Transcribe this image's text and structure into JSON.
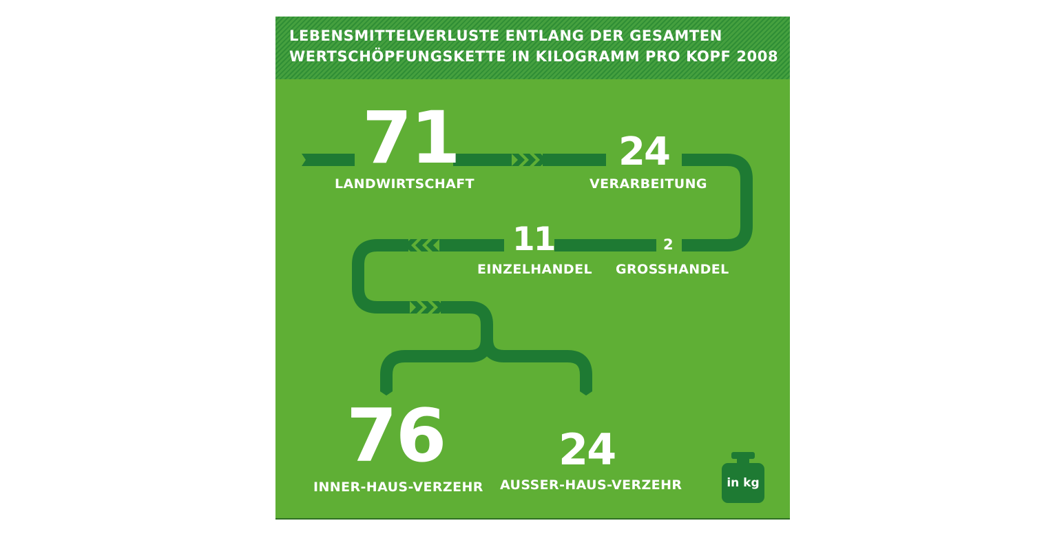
{
  "title": {
    "line1": "LEBENSMITTELVERLUSTE ENTLANG DER GESAMTEN",
    "line2": "WERTSCHÖPFUNGSKETTE IN KILOGRAMM PRO KOPF 2008"
  },
  "stages": [
    {
      "value": "71",
      "label": "LANDWIRTSCHAFT"
    },
    {
      "value": "24",
      "label": "VERARBEITUNG"
    },
    {
      "value": "2",
      "label": "GROSSHANDEL"
    },
    {
      "value": "11",
      "label": "EINZELHANDEL"
    },
    {
      "value": "76",
      "label": "INNER-HAUS-VERZEHR"
    },
    {
      "value": "24",
      "label": "AUSSER-HAUS-VERZEHR"
    }
  ],
  "unit_badge": "in kg",
  "colors": {
    "background": "#5faf35",
    "path": "#1e7a33",
    "header_stripe_light": "#45a03f",
    "header_stripe_dark": "#2f8e35",
    "text": "#ffffff"
  },
  "icons": {
    "unit": "weight-icon",
    "flow": "chevron-arrow-icon"
  }
}
